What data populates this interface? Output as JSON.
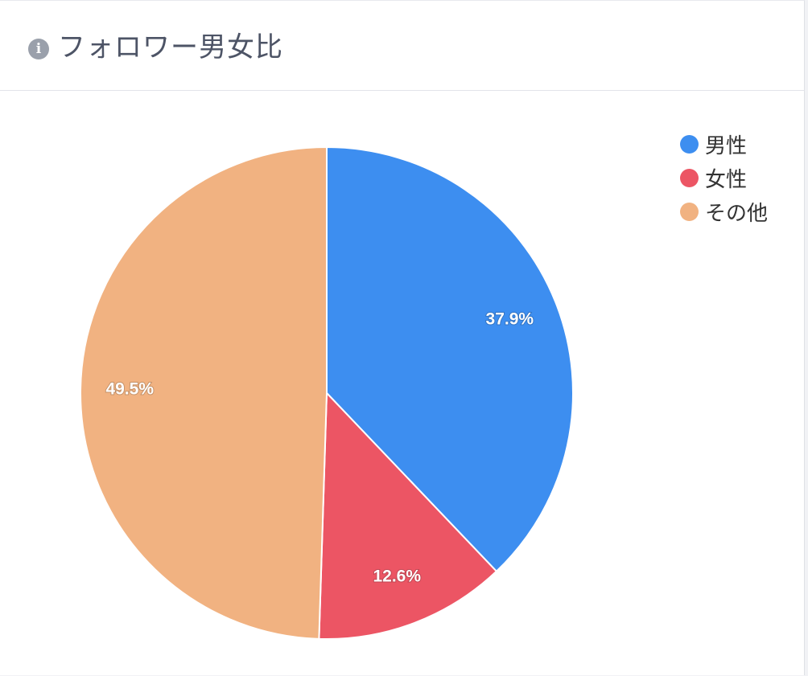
{
  "card": {
    "title": "フォロワー男女比",
    "info_icon_glyph": "i"
  },
  "chart_data": {
    "type": "pie",
    "title": "フォロワー男女比",
    "categories": [
      "男性",
      "女性",
      "その他"
    ],
    "values": [
      37.9,
      12.6,
      49.5
    ],
    "labels": [
      "37.9%",
      "12.6%",
      "49.5%"
    ],
    "colors": [
      "#3d8ef0",
      "#ec5564",
      "#f1b281"
    ],
    "start_angle": "12 o'clock",
    "direction": "clockwise",
    "legend_position": "top-right"
  }
}
